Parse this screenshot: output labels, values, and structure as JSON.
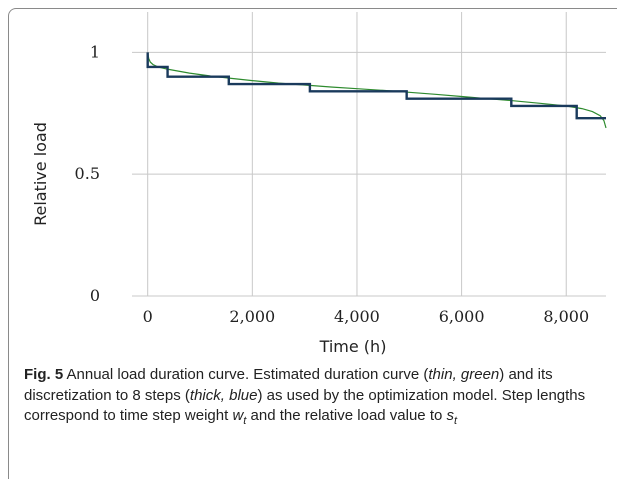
{
  "chart_data": {
    "type": "line",
    "xlabel": "Time (h)",
    "ylabel": "Relative load",
    "xlim": [
      -300,
      8760
    ],
    "ylim": [
      0,
      1.1
    ],
    "xticks": [
      0,
      2000,
      4000,
      6000,
      8000
    ],
    "xtick_labels": [
      "0",
      "2,000",
      "4,000",
      "6,000",
      "8,000"
    ],
    "yticks": [
      0,
      0.5,
      1
    ],
    "ytick_labels": [
      "0",
      "0.5",
      "1"
    ],
    "grid": true,
    "series": [
      {
        "style": "thin",
        "color": "#2e8b2e",
        "x": [
          0,
          20,
          50,
          100,
          200,
          400,
          800,
          1200,
          1600,
          2000,
          2500,
          3000,
          3500,
          4000,
          4500,
          5000,
          5500,
          6000,
          6500,
          7000,
          7500,
          8000,
          8300,
          8500,
          8650,
          8720,
          8760
        ],
        "y": [
          1.0,
          0.975,
          0.96,
          0.95,
          0.94,
          0.93,
          0.915,
          0.903,
          0.893,
          0.884,
          0.874,
          0.866,
          0.858,
          0.851,
          0.844,
          0.836,
          0.828,
          0.819,
          0.81,
          0.801,
          0.791,
          0.78,
          0.769,
          0.757,
          0.74,
          0.72,
          0.69
        ]
      },
      {
        "style": "thick",
        "color": "#1a3a5c",
        "steps": [
          {
            "x0": 0,
            "x1": 380,
            "y": 0.94
          },
          {
            "x0": 380,
            "x1": 1550,
            "y": 0.9
          },
          {
            "x0": 1550,
            "x1": 3100,
            "y": 0.87
          },
          {
            "x0": 3100,
            "x1": 4950,
            "y": 0.84
          },
          {
            "x0": 4950,
            "x1": 6950,
            "y": 0.81
          },
          {
            "x0": 6950,
            "x1": 8200,
            "y": 0.78
          },
          {
            "x0": 8200,
            "x1": 8760,
            "y": 0.73
          }
        ],
        "start": {
          "x": 0,
          "y": 1.0
        }
      }
    ]
  },
  "caption": {
    "fig_label": "Fig. 5",
    "parts": [
      {
        "t": " Annual load duration curve. Estimated duration curve ("
      },
      {
        "t": "thin, green",
        "i": true
      },
      {
        "t": ") and its discretization to 8 steps ("
      },
      {
        "t": "thick, blue",
        "i": true
      },
      {
        "t": ") as used by the optimization model. Step lengths correspond to time step weight "
      },
      {
        "t": "w",
        "i": true
      },
      {
        "t": "t",
        "sub": true
      },
      {
        "t": " and the relative load value to "
      },
      {
        "t": "s",
        "i": true
      },
      {
        "t": "t",
        "sub": true
      }
    ]
  }
}
